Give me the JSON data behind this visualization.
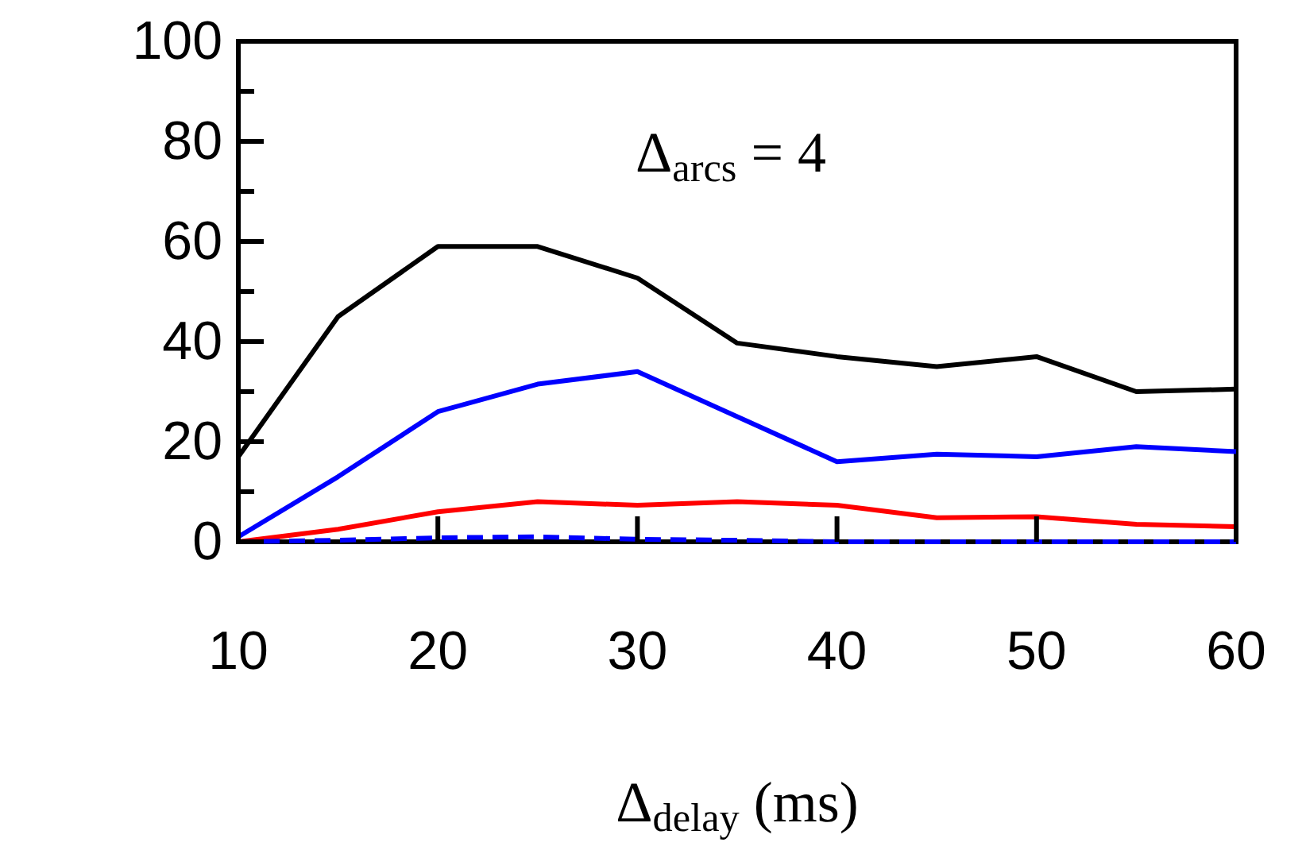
{
  "chart_data": {
    "type": "line",
    "xlabel": "Δ$_{delay}$ (ms)",
    "annotations": [
      "Δ$_{arcs}$ = 4"
    ],
    "x": [
      10,
      15,
      20,
      25,
      30,
      35,
      40,
      45,
      50,
      55,
      60
    ],
    "xlim": [
      10,
      60
    ],
    "xticks": [
      10,
      20,
      30,
      40,
      50,
      60
    ],
    "ylim": [
      0,
      100
    ],
    "yticks": [
      0,
      {
        "value": 10,
        "label": null
      },
      20,
      {
        "value": 30,
        "label": null
      },
      40,
      {
        "value": 50,
        "label": null
      },
      60,
      {
        "value": 70,
        "label": null
      },
      80,
      {
        "value": 90,
        "label": null
      },
      100
    ],
    "grid": false,
    "marker": "none",
    "series": [
      {
        "color": "#000000",
        "values": [
          17,
          45,
          59,
          59,
          52.7,
          39.7,
          37,
          35,
          37,
          30,
          30.5
        ]
      },
      {
        "color": "#0000ff",
        "values": [
          1,
          13,
          26,
          31.5,
          34,
          25,
          16,
          17.5,
          17,
          19,
          18
        ]
      },
      {
        "color": "#ff0000",
        "values": [
          0,
          2.5,
          6,
          8,
          7.3,
          8,
          7.3,
          4.8,
          5,
          3.5,
          3
        ]
      },
      {
        "color": "#0000ff",
        "line_style": "dashed",
        "values": [
          0,
          0.3,
          0.8,
          1,
          0.5,
          0.3,
          0,
          0,
          0,
          0,
          0
        ]
      }
    ]
  }
}
